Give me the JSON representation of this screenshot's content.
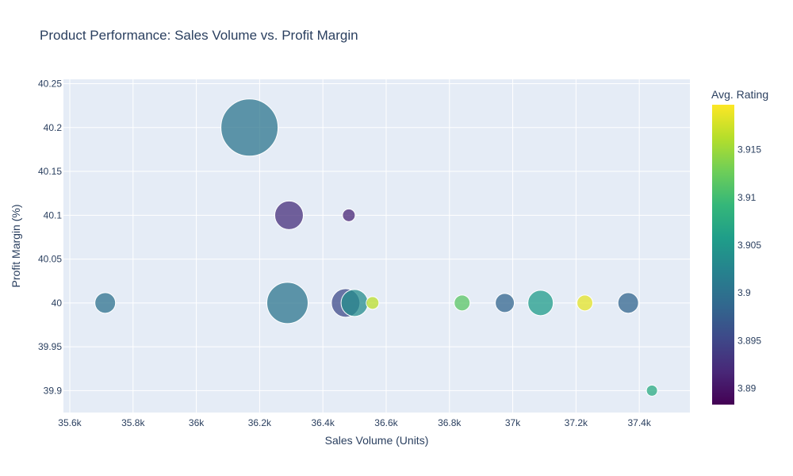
{
  "chart_data": {
    "type": "scatter",
    "subtype": "bubble",
    "title": "Product Performance: Sales Volume vs. Profit Margin",
    "xlabel": "Sales Volume (Units)",
    "ylabel": "Profit Margin (%)",
    "xlim": [
      35580,
      37560
    ],
    "ylim": [
      39.875,
      40.255
    ],
    "x_ticks": [
      35600,
      35800,
      36000,
      36200,
      36400,
      36600,
      36800,
      37000,
      37200,
      37400
    ],
    "x_tick_labels": [
      "35.6k",
      "35.8k",
      "36k",
      "36.2k",
      "36.4k",
      "36.6k",
      "36.8k",
      "37k",
      "37.2k",
      "37.4k"
    ],
    "y_ticks": [
      39.9,
      39.95,
      40,
      40.05,
      40.1,
      40.15,
      40.2,
      40.25
    ],
    "y_tick_labels": [
      "39.9",
      "39.95",
      "40",
      "40.05",
      "40.1",
      "40.15",
      "40.2",
      "40.25"
    ],
    "grid": true,
    "colorbar": {
      "title": "Avg. Rating",
      "range": [
        3.8883,
        3.9197
      ],
      "ticks": [
        3.89,
        3.895,
        3.9,
        3.905,
        3.91,
        3.915
      ],
      "tick_labels": [
        "3.89",
        "3.895",
        "3.9",
        "3.905",
        "3.91",
        "3.915"
      ],
      "colorscale": "Viridis"
    },
    "size_note": "bubble size proportional to relative product volume",
    "points": [
      {
        "x": 35712,
        "y": 40.0,
        "size": 13,
        "color": 3.9
      },
      {
        "x": 36168,
        "y": 40.2,
        "size": 36,
        "color": 3.9005
      },
      {
        "x": 36293,
        "y": 40.1,
        "size": 18,
        "color": 3.8925
      },
      {
        "x": 36288,
        "y": 40.0,
        "size": 26,
        "color": 3.9005
      },
      {
        "x": 36482,
        "y": 40.1,
        "size": 8,
        "color": 3.8915
      },
      {
        "x": 36472,
        "y": 40.0,
        "size": 18,
        "color": 3.8955
      },
      {
        "x": 36500,
        "y": 40.0,
        "size": 17,
        "color": 3.9035
      },
      {
        "x": 36557,
        "y": 40.0,
        "size": 8,
        "color": 3.9165
      },
      {
        "x": 36840,
        "y": 40.0,
        "size": 10,
        "color": 3.9115
      },
      {
        "x": 36975,
        "y": 40.0,
        "size": 12,
        "color": 3.8985
      },
      {
        "x": 37088,
        "y": 40.0,
        "size": 16,
        "color": 3.9055
      },
      {
        "x": 37228,
        "y": 40.0,
        "size": 10,
        "color": 3.9185
      },
      {
        "x": 37365,
        "y": 40.0,
        "size": 13,
        "color": 3.8985
      },
      {
        "x": 37440,
        "y": 39.9,
        "size": 7,
        "color": 3.9075
      }
    ]
  }
}
